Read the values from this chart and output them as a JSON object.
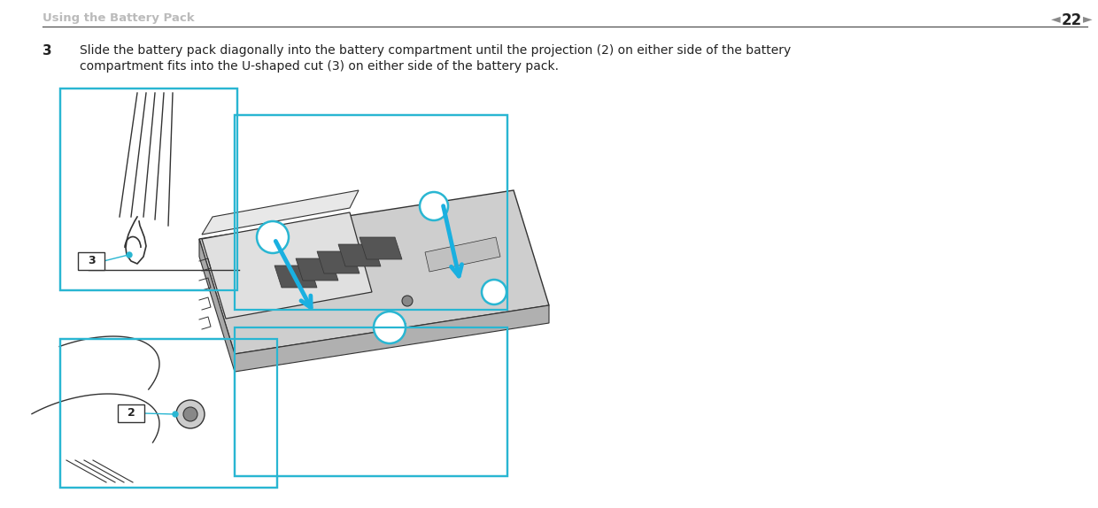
{
  "background_color": "#ffffff",
  "header_text": "Using the Battery Pack",
  "header_color": "#bbbbbb",
  "header_fontsize": 9.5,
  "page_number": "22",
  "page_number_color": "#222222",
  "page_number_fontsize": 12,
  "arrow_left": "◄",
  "arrow_right": "►",
  "arrow_color": "#888888",
  "header_line_color": "#444444",
  "step_number": "3",
  "step_number_fontsize": 11,
  "step_text_line1": "Slide the battery pack diagonally into the battery compartment until the projection (2) on either side of the battery",
  "step_text_line2": "compartment fits into the U-shaped cut (3) on either side of the battery pack.",
  "step_text_fontsize": 10,
  "step_text_color": "#222222",
  "cyan_color": "#29b6d2",
  "cyan_linewidth": 1.6,
  "label_fontsize": 9,
  "label_border": "#333333",
  "blue_arrow_color": "#1ab0e0",
  "line_art_color": "#333333",
  "gray_fill": "#d4d4d4",
  "dark_gray": "#555555"
}
